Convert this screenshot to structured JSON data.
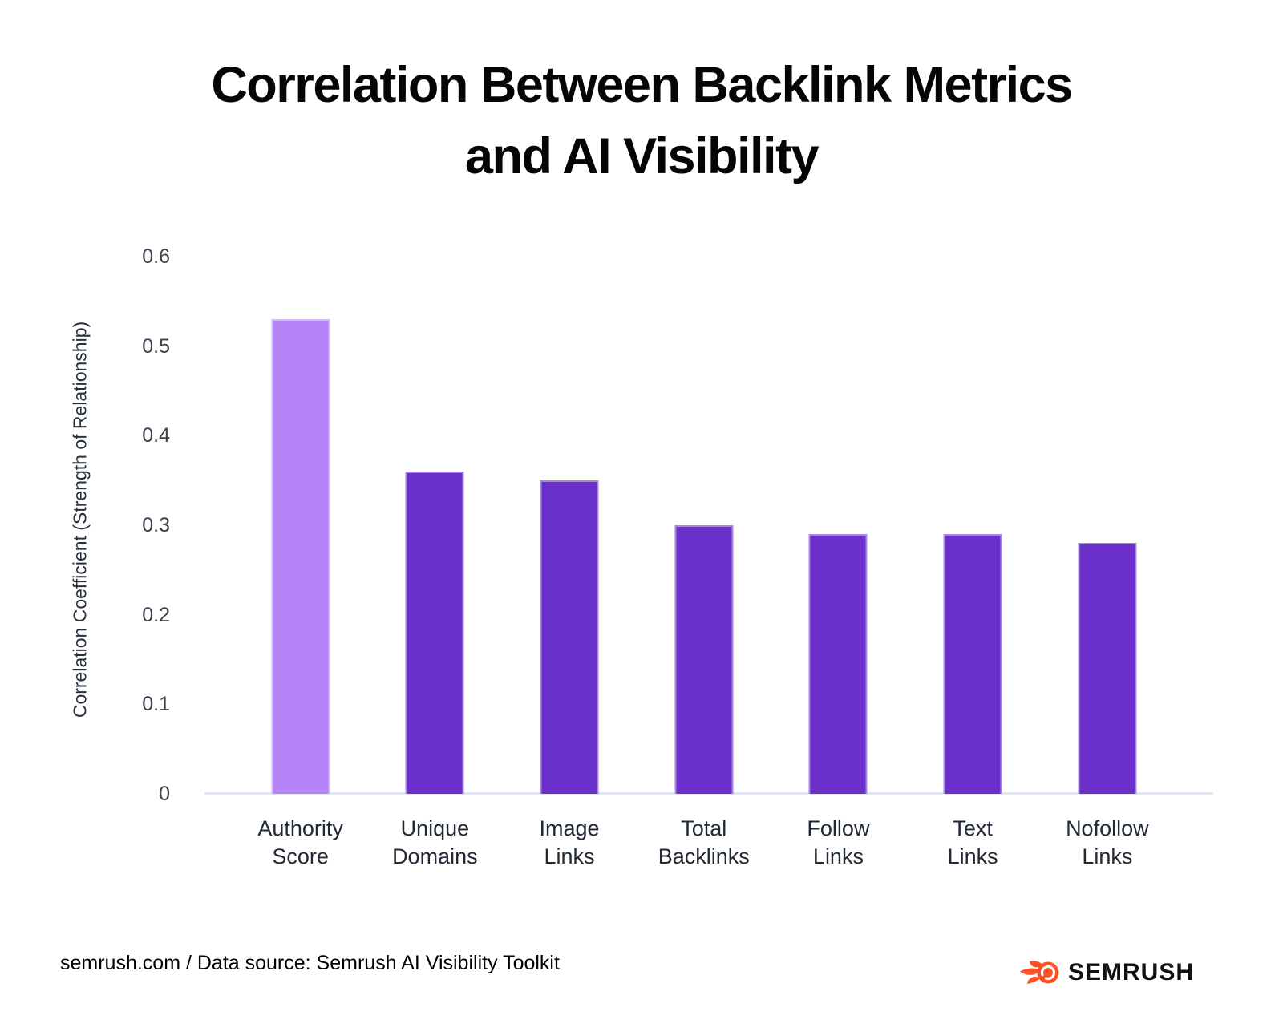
{
  "page": {
    "title_line1": "Correlation Between Backlink Metrics",
    "title_line2": "and AI Visibility"
  },
  "chart_data": {
    "type": "bar",
    "title": "Correlation Between Backlink Metrics and AI Visibility",
    "categories": [
      "Authority Score",
      "Unique Domains",
      "Image Links",
      "Total Backlinks",
      "Follow Links",
      "Text Links",
      "Nofollow Links"
    ],
    "values": [
      0.53,
      0.36,
      0.35,
      0.3,
      0.29,
      0.29,
      0.28
    ],
    "xlabel": "",
    "ylabel": "Correlation Coefficient (Strength of Relationship)",
    "ylim": [
      0,
      0.6
    ],
    "ytick_labels": [
      "0",
      "0.1",
      "0.2",
      "0.3",
      "0.4",
      "0.5",
      "0.6"
    ],
    "grid": false,
    "legend": "none",
    "highlight_index": 0,
    "bar_colors": [
      "#b583f8",
      "#6a30c9",
      "#6a30c9",
      "#6a30c9",
      "#6a30c9",
      "#6a30c9",
      "#6a30c9"
    ],
    "axis_line_color": "#e2e6f0"
  },
  "footer": {
    "source_text": "semrush.com / Data source: Semrush AI Visibility Toolkit",
    "logo_text": "SEMRUSH",
    "logo_orange": "#ff5023"
  }
}
